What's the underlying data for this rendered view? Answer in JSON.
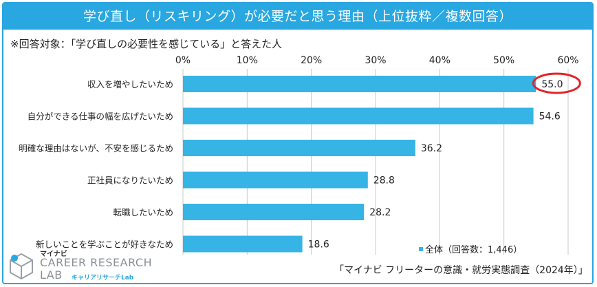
{
  "title": "学び直し（リスキリング）が必要だと思う理由（上位抜粋／複数回答）",
  "subtitle": "※回答対象：「学び直しの必要性を感じている」と答えた人",
  "legend": {
    "label": "全体（回答数：1,446）"
  },
  "source": "「マイナビ フリーターの意識・就労実態調査（2024年）」",
  "logo": {
    "kana": "マイナビ",
    "name_line1": "CAREER RESEARCH",
    "name_line2": "LAB",
    "sub": "キャリアリサーチLab"
  },
  "colors": {
    "title_bg": "#29a7e1",
    "bar": "#36b4e5",
    "highlight": "#e3232a",
    "grid": "#c8c8c8"
  },
  "chart_data": {
    "type": "bar",
    "orientation": "horizontal",
    "categories": [
      "収入を増やしたいため",
      "自分ができる仕事の幅を広げたいため",
      "明確な理由はないが、不安を感じるため",
      "正社員になりたいため",
      "転職したいため",
      "新しいことを学ぶことが好きなため"
    ],
    "series": [
      {
        "name": "全体（回答数：1,446）",
        "values": [
          55.0,
          54.6,
          36.2,
          28.8,
          28.2,
          18.6
        ]
      }
    ],
    "data_labels": [
      "55.0",
      "54.6",
      "36.2",
      "28.8",
      "28.2",
      "18.6"
    ],
    "xlim": [
      0,
      60
    ],
    "ticks": [
      0,
      10,
      20,
      30,
      40,
      50,
      60
    ],
    "tick_labels": [
      "0%",
      "10%",
      "20%",
      "30%",
      "40%",
      "50%",
      "60%"
    ],
    "highlight_index": 0,
    "grid": true
  }
}
